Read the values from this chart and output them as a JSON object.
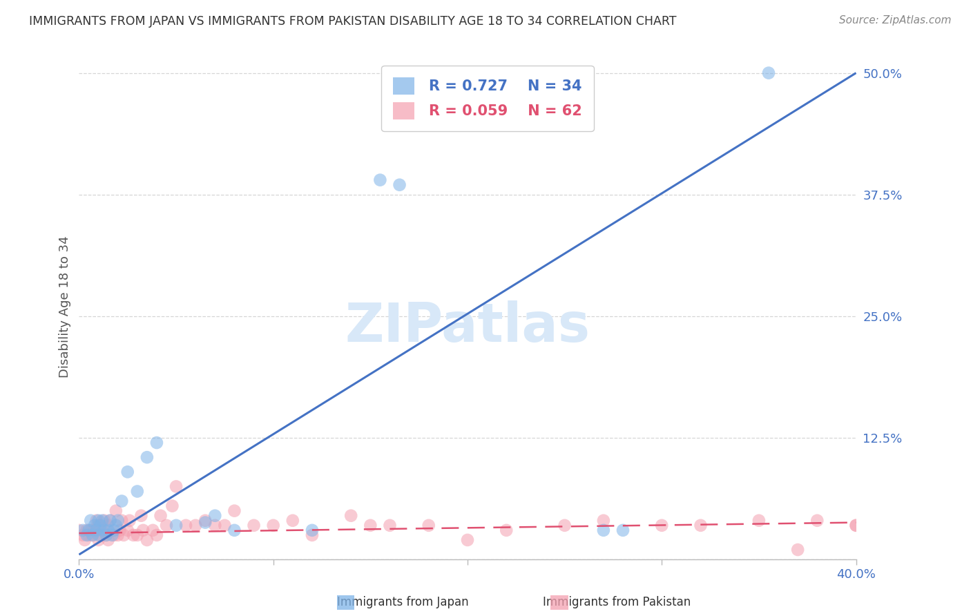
{
  "title": "IMMIGRANTS FROM JAPAN VS IMMIGRANTS FROM PAKISTAN DISABILITY AGE 18 TO 34 CORRELATION CHART",
  "source": "Source: ZipAtlas.com",
  "ylabel": "Disability Age 18 to 34",
  "xlim": [
    0.0,
    0.4
  ],
  "ylim": [
    0.0,
    0.52
  ],
  "yticks": [
    0.0,
    0.125,
    0.25,
    0.375,
    0.5
  ],
  "ytick_labels": [
    "",
    "12.5%",
    "25.0%",
    "37.5%",
    "50.0%"
  ],
  "xticks": [
    0.0,
    0.1,
    0.2,
    0.3,
    0.4
  ],
  "xtick_labels": [
    "0.0%",
    "",
    "",
    "",
    "40.0%"
  ],
  "legend_japan_R": "0.727",
  "legend_japan_N": "34",
  "legend_pakistan_R": "0.059",
  "legend_pakistan_N": "62",
  "japan_color": "#7EB3E8",
  "pakistan_color": "#F4A0B0",
  "japan_line_color": "#4472C4",
  "pakistan_line_color": "#E05070",
  "grid_color": "#CCCCCC",
  "title_color": "#333333",
  "axis_label_color": "#4472C4",
  "watermark_color": "#D8E8F8",
  "background_color": "#FFFFFF",
  "japan_scatter_x": [
    0.002,
    0.004,
    0.005,
    0.006,
    0.007,
    0.008,
    0.009,
    0.01,
    0.01,
    0.011,
    0.012,
    0.013,
    0.014,
    0.015,
    0.016,
    0.017,
    0.018,
    0.019,
    0.02,
    0.022,
    0.025,
    0.03,
    0.035,
    0.04,
    0.05,
    0.065,
    0.07,
    0.08,
    0.12,
    0.155,
    0.165,
    0.27,
    0.28,
    0.355
  ],
  "japan_scatter_y": [
    0.03,
    0.025,
    0.03,
    0.04,
    0.025,
    0.035,
    0.03,
    0.025,
    0.04,
    0.035,
    0.04,
    0.03,
    0.025,
    0.03,
    0.04,
    0.025,
    0.03,
    0.035,
    0.04,
    0.06,
    0.09,
    0.07,
    0.105,
    0.12,
    0.035,
    0.038,
    0.045,
    0.03,
    0.03,
    0.39,
    0.385,
    0.03,
    0.03,
    0.5
  ],
  "pakistan_scatter_x": [
    0.0,
    0.002,
    0.003,
    0.004,
    0.005,
    0.006,
    0.007,
    0.008,
    0.009,
    0.01,
    0.01,
    0.011,
    0.012,
    0.013,
    0.014,
    0.015,
    0.015,
    0.016,
    0.018,
    0.019,
    0.02,
    0.021,
    0.022,
    0.023,
    0.025,
    0.026,
    0.028,
    0.03,
    0.032,
    0.033,
    0.035,
    0.038,
    0.04,
    0.042,
    0.045,
    0.048,
    0.05,
    0.055,
    0.06,
    0.065,
    0.07,
    0.075,
    0.08,
    0.09,
    0.1,
    0.11,
    0.12,
    0.14,
    0.15,
    0.16,
    0.18,
    0.2,
    0.22,
    0.25,
    0.27,
    0.3,
    0.32,
    0.35,
    0.37,
    0.38,
    0.4,
    0.4
  ],
  "pakistan_scatter_y": [
    0.03,
    0.025,
    0.02,
    0.03,
    0.025,
    0.03,
    0.025,
    0.03,
    0.04,
    0.02,
    0.035,
    0.025,
    0.03,
    0.04,
    0.025,
    0.02,
    0.035,
    0.04,
    0.025,
    0.05,
    0.025,
    0.03,
    0.04,
    0.025,
    0.03,
    0.04,
    0.025,
    0.025,
    0.045,
    0.03,
    0.02,
    0.03,
    0.025,
    0.045,
    0.035,
    0.055,
    0.075,
    0.035,
    0.035,
    0.04,
    0.035,
    0.035,
    0.05,
    0.035,
    0.035,
    0.04,
    0.025,
    0.045,
    0.035,
    0.035,
    0.035,
    0.02,
    0.03,
    0.035,
    0.04,
    0.035,
    0.035,
    0.04,
    0.01,
    0.04,
    0.035,
    0.035
  ],
  "japan_line_x": [
    0.0,
    0.4
  ],
  "japan_line_y": [
    0.005,
    0.5
  ],
  "pakistan_line_x": [
    0.0,
    0.4
  ],
  "pakistan_line_y": [
    0.027,
    0.038
  ]
}
